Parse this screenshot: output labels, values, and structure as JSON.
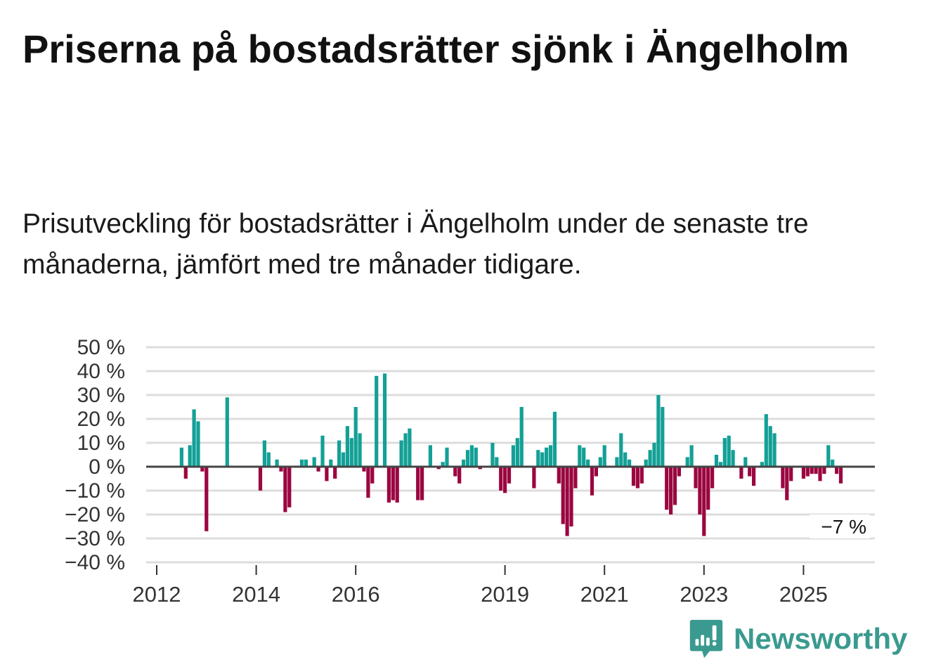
{
  "title": "Priserna på bostadsrätter sjönk i Ängelholm",
  "subtitle": "Prisutveckling för bostadsrätter i Ängelholm under de senaste tre månaderna, jämfört med tre månader tidigare.",
  "logo": {
    "text": "Newsworthy"
  },
  "colors": {
    "positive": "#13a096",
    "negative": "#9b0640",
    "zero_line": "#444444",
    "grid": "#dddddd",
    "brand": "#3a9a8f"
  },
  "chart_data": {
    "type": "bar",
    "title": "Priserna på bostadsrätter sjönk i Ängelholm",
    "xlabel": "",
    "ylabel": "",
    "frequency": "monthly",
    "start": "2012-01",
    "ylim": [
      -40,
      50
    ],
    "y_ticks": [
      50,
      40,
      30,
      20,
      10,
      0,
      -10,
      -20,
      -30,
      -40
    ],
    "y_tick_labels": [
      "50 %",
      "40 %",
      "30 %",
      "20 %",
      "10 %",
      "0 %",
      "−10 %",
      "−20 %",
      "−30 %",
      "−40 %"
    ],
    "x_ticks": [
      2012,
      2014,
      2016,
      2019,
      2021,
      2023,
      2025
    ],
    "x_tick_labels": [
      "2012",
      "2014",
      "2016",
      "2019",
      "2021",
      "2023",
      "2025"
    ],
    "grid": true,
    "last_value_label": "−7 %",
    "values": [
      0,
      0,
      0,
      0,
      0,
      0,
      8,
      -5,
      9,
      24,
      19,
      -2,
      -27,
      0,
      0,
      0,
      0,
      29,
      0,
      0,
      0,
      0,
      0,
      0,
      0,
      -10,
      11,
      6,
      0,
      3,
      -2,
      -19,
      -17,
      0,
      0,
      3,
      3,
      0,
      4,
      -2,
      13,
      -6,
      3,
      -5,
      11,
      6,
      17,
      12,
      25,
      14,
      -2,
      -13,
      -7,
      38,
      0,
      39,
      -15,
      -14,
      -15,
      11,
      14,
      16,
      0,
      -14,
      -14,
      0,
      9,
      0,
      -1,
      2,
      8,
      0,
      -4,
      -7,
      3,
      7,
      9,
      8,
      -1,
      0,
      0,
      10,
      4,
      -10,
      -11,
      -7,
      9,
      12,
      25,
      0,
      0,
      -9,
      7,
      6,
      8,
      9,
      23,
      -7,
      -24,
      -29,
      -25,
      -9,
      9,
      8,
      3,
      -12,
      -4,
      4,
      9,
      0,
      0,
      4,
      14,
      6,
      3,
      -8,
      -9,
      -7,
      3,
      7,
      10,
      30,
      25,
      -18,
      -20,
      -16,
      -4,
      0,
      4,
      9,
      -9,
      -20,
      -29,
      -18,
      -9,
      5,
      2,
      12,
      13,
      7,
      0,
      -5,
      4,
      -4,
      -8,
      0,
      2,
      22,
      17,
      14,
      0,
      -9,
      -14,
      -6,
      0,
      0,
      -5,
      -4,
      -3,
      -3,
      -6,
      -3,
      9,
      3,
      -3,
      -7
    ]
  }
}
